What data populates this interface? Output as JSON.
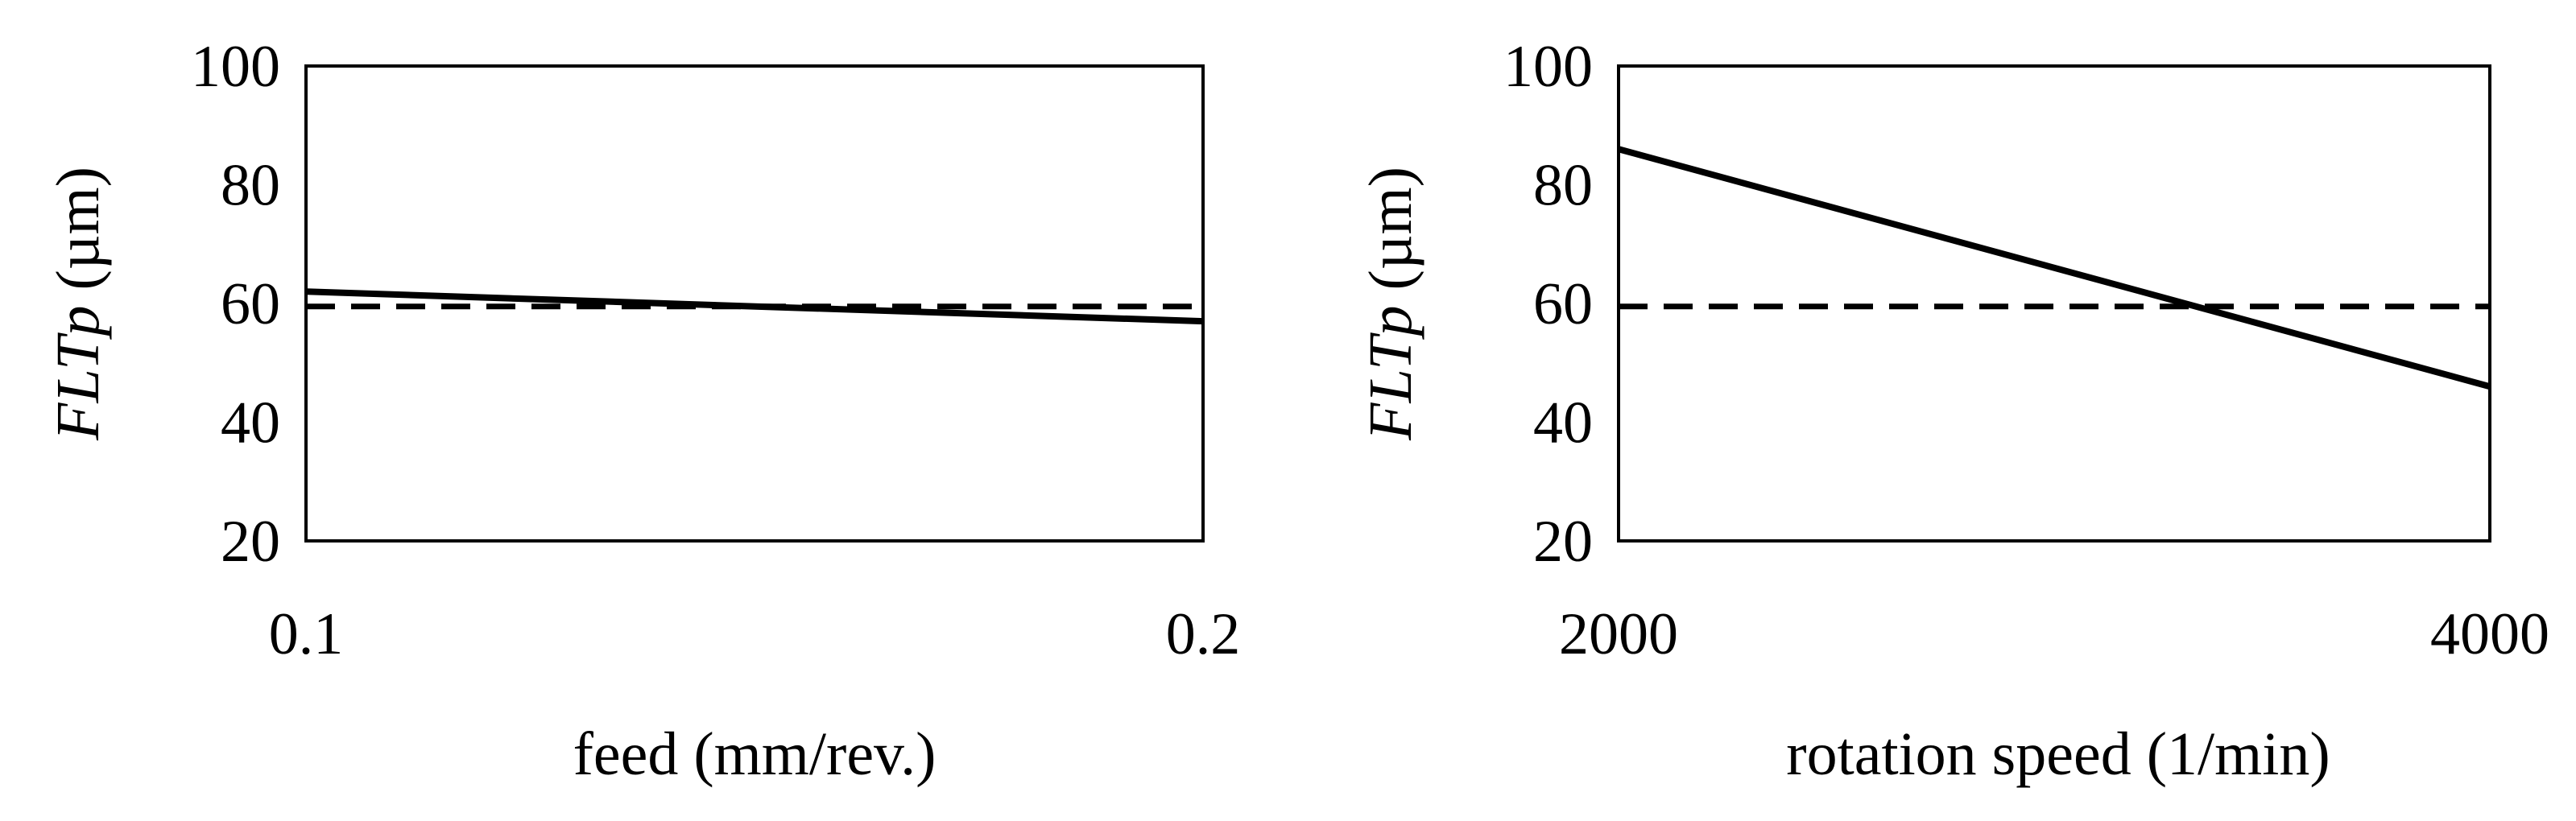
{
  "chart_data": [
    {
      "type": "line",
      "xlabel": "feed (mm/rev.)",
      "ylabel": {
        "italic": "FLTp",
        "plain": " (µm)"
      },
      "x_ticks": [
        "0.1",
        "0.2"
      ],
      "xlim": [
        0.1,
        0.2
      ],
      "ylim": [
        20,
        100
      ],
      "y_ticks": [
        "20",
        "40",
        "60",
        "80",
        "100"
      ],
      "grid": false,
      "series": [
        {
          "style": "solid",
          "color": "#000000",
          "x": [
            0.1,
            0.2
          ],
          "y": [
            62,
            57
          ]
        },
        {
          "style": "dashed",
          "color": "#000000",
          "x": [
            0.1,
            0.2
          ],
          "y": [
            59.5,
            59.5
          ]
        }
      ]
    },
    {
      "type": "line",
      "xlabel": "rotation speed (1/min)",
      "ylabel": {
        "italic": "FLTp",
        "plain": " (µm)"
      },
      "x_ticks": [
        "2000",
        "4000"
      ],
      "xlim": [
        2000,
        4000
      ],
      "ylim": [
        20,
        100
      ],
      "y_ticks": [
        "20",
        "40",
        "60",
        "80",
        "100"
      ],
      "grid": false,
      "series": [
        {
          "style": "solid",
          "color": "#000000",
          "x": [
            2000,
            4000
          ],
          "y": [
            86,
            46
          ]
        },
        {
          "style": "dashed",
          "color": "#000000",
          "x": [
            2000,
            4000
          ],
          "y": [
            59.5,
            59.5
          ]
        }
      ]
    }
  ]
}
